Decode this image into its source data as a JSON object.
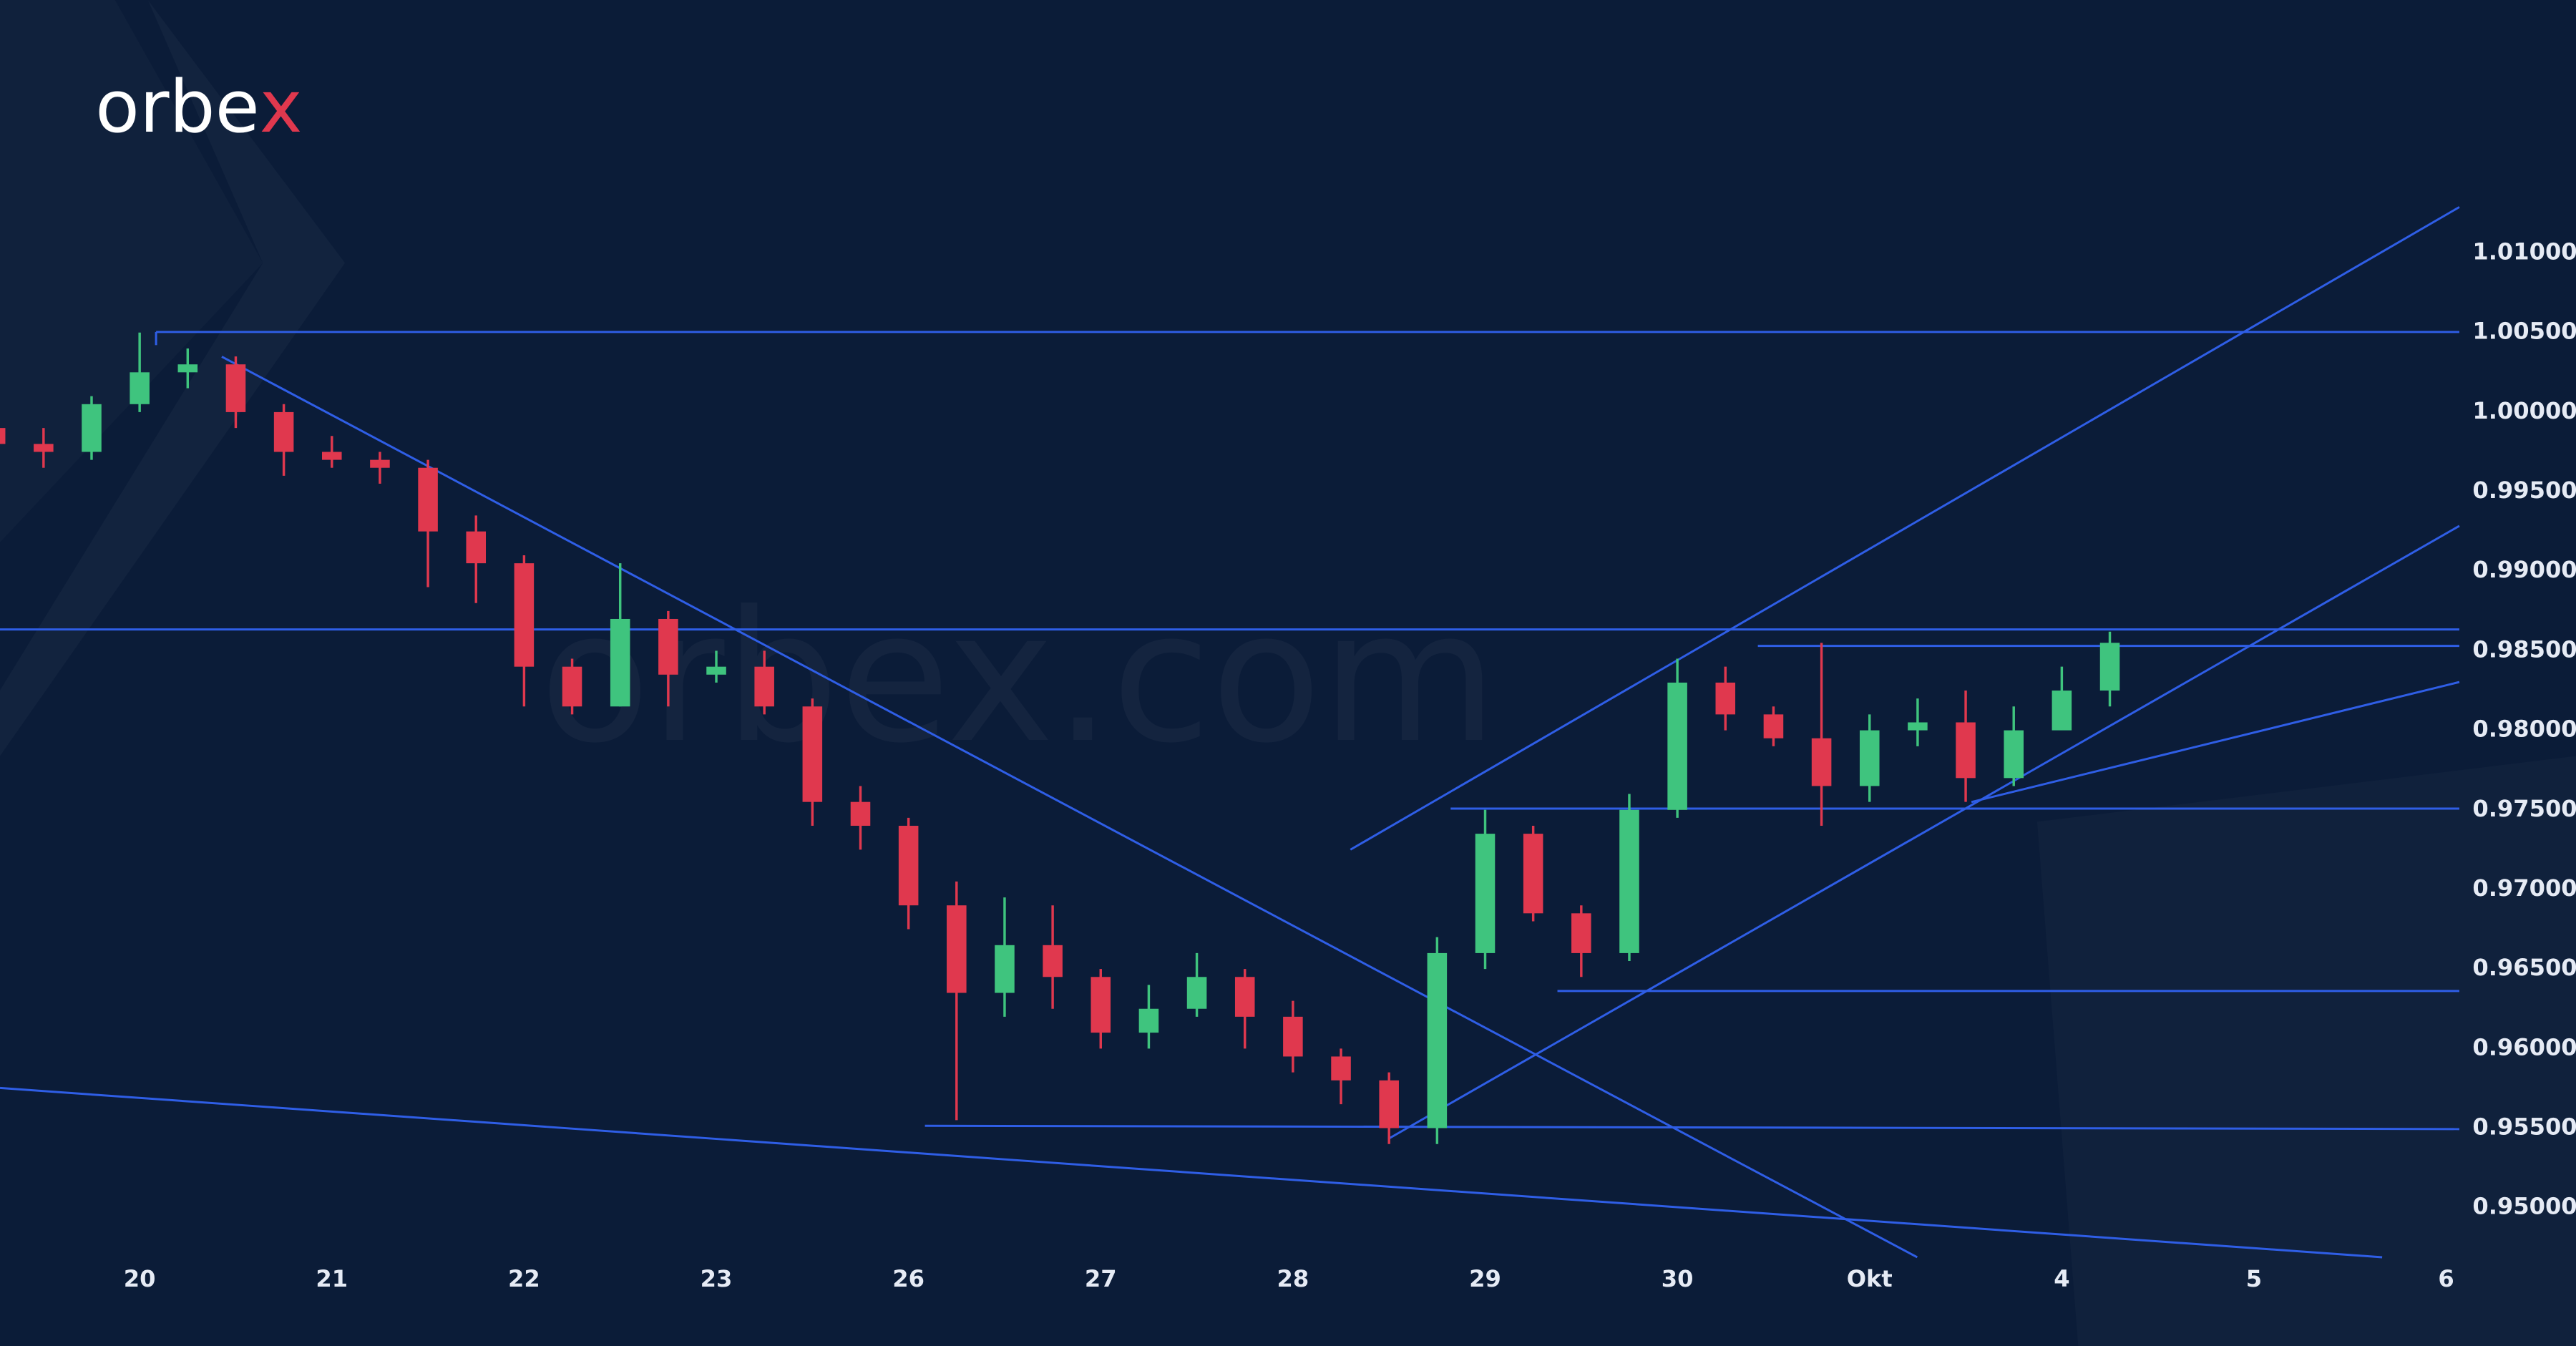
{
  "logo": [
    "orbe",
    "x"
  ],
  "watermark": "orbex.com",
  "chart_data": {
    "type": "candlestick",
    "categories": [
      null,
      null,
      null,
      "20",
      null,
      null,
      null,
      "21",
      null,
      null,
      null,
      "22",
      null,
      null,
      null,
      "23",
      null,
      null,
      null,
      "26",
      null,
      null,
      null,
      "27",
      null,
      null,
      null,
      "28",
      null,
      null,
      null,
      "29",
      null,
      null,
      null,
      "30",
      null,
      null,
      null,
      "Okt",
      null,
      null,
      null,
      "4",
      null,
      null,
      null,
      "5",
      null,
      null,
      null,
      "6"
    ],
    "open": [
      0.999,
      0.998,
      0.9975,
      1.0005,
      1.0025,
      1.003,
      1.0,
      0.9975,
      0.997,
      0.9965,
      0.9925,
      0.9905,
      0.984,
      0.9815,
      0.987,
      0.9835,
      0.984,
      0.9815,
      0.9755,
      0.974,
      0.969,
      0.9635,
      0.9665,
      0.9645,
      0.961,
      0.9625,
      0.9645,
      0.962,
      0.9595,
      0.958,
      0.955,
      0.966,
      0.9735,
      0.9685,
      0.966,
      0.975,
      0.983,
      0.981,
      0.9795,
      0.9765,
      0.98,
      0.9805,
      0.977,
      0.98,
      0.9825,
      null,
      null,
      null,
      null,
      null,
      null,
      null
    ],
    "high": [
      0.9995,
      0.999,
      1.001,
      1.005,
      1.004,
      1.0035,
      1.0005,
      0.9985,
      0.9975,
      0.997,
      0.9935,
      0.991,
      0.9845,
      0.9905,
      0.9875,
      0.985,
      0.985,
      0.982,
      0.9765,
      0.9745,
      0.9705,
      0.9695,
      0.969,
      0.965,
      0.964,
      0.966,
      0.965,
      0.963,
      0.96,
      0.9585,
      0.967,
      0.975,
      0.974,
      0.969,
      0.976,
      0.9845,
      0.984,
      0.9815,
      0.9855,
      0.981,
      0.982,
      0.9825,
      0.9815,
      0.984,
      0.9862,
      null,
      null,
      null,
      null,
      null,
      null,
      null
    ],
    "low": [
      0.997,
      0.9965,
      0.997,
      1.0,
      1.0015,
      0.999,
      0.996,
      0.9965,
      0.9955,
      0.989,
      0.988,
      0.9815,
      0.981,
      0.9815,
      0.9815,
      0.983,
      0.981,
      0.974,
      0.9725,
      0.9675,
      0.9555,
      0.962,
      0.9625,
      0.96,
      0.96,
      0.962,
      0.96,
      0.9585,
      0.9565,
      0.954,
      0.954,
      0.965,
      0.968,
      0.9645,
      0.9655,
      0.9745,
      0.98,
      0.979,
      0.974,
      0.9755,
      0.979,
      0.9755,
      0.9765,
      0.9805,
      0.9815,
      null,
      null,
      null,
      null,
      null,
      null,
      null
    ],
    "close": [
      0.998,
      0.9975,
      1.0005,
      1.0025,
      1.003,
      1.0,
      0.9975,
      0.997,
      0.9965,
      0.9925,
      0.9905,
      0.984,
      0.9815,
      0.987,
      0.9835,
      0.984,
      0.9815,
      0.9755,
      0.974,
      0.969,
      0.9635,
      0.9665,
      0.9645,
      0.961,
      0.9625,
      0.9645,
      0.962,
      0.9595,
      0.958,
      0.955,
      0.966,
      0.9735,
      0.9685,
      0.966,
      0.975,
      0.983,
      0.981,
      0.9795,
      0.9765,
      0.98,
      0.9805,
      0.977,
      0.98,
      0.9825,
      0.9855,
      null,
      null,
      null,
      null,
      null,
      null,
      null
    ],
    "up_color": "#3fc47e",
    "down_color": "#e0384e",
    "ylim": [
      0.9474,
      1.0259
    ],
    "yticks": [
      {
        "value": 0.95,
        "label": "0.95000"
      },
      {
        "value": 0.955,
        "label": "0.95500"
      },
      {
        "value": 0.96,
        "label": "0.96000"
      },
      {
        "value": 0.965,
        "label": "0.96500"
      },
      {
        "value": 0.97,
        "label": "0.97000"
      },
      {
        "value": 0.975,
        "label": "0.97500"
      },
      {
        "value": 0.98,
        "label": "0.98000"
      },
      {
        "value": 0.985,
        "label": "0.98500"
      },
      {
        "value": 0.99,
        "label": "0.99000"
      },
      {
        "value": 0.995,
        "label": "0.99500"
      },
      {
        "value": 1.0,
        "label": "1.00000"
      },
      {
        "value": 1.005,
        "label": "1.00500"
      },
      {
        "value": 1.01,
        "label": "1.01000"
      }
    ],
    "grid": false
  }
}
